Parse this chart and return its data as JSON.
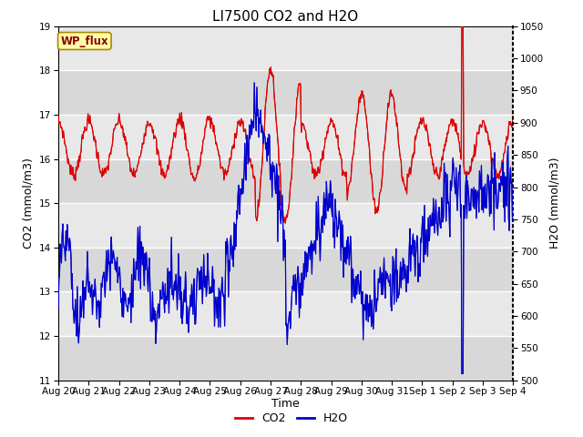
{
  "title": "LI7500 CO2 and H2O",
  "xlabel": "Time",
  "ylabel_left": "CO2 (mmol/m3)",
  "ylabel_right": "H2O (mmol/m3)",
  "ylim_left": [
    11.0,
    19.0
  ],
  "ylim_right": [
    500,
    1050
  ],
  "yticks_left": [
    11.0,
    12.0,
    13.0,
    14.0,
    15.0,
    16.0,
    17.0,
    18.0,
    19.0
  ],
  "yticks_right": [
    500,
    550,
    600,
    650,
    700,
    750,
    800,
    850,
    900,
    950,
    1000,
    1050
  ],
  "xtick_labels": [
    "Aug 20",
    "Aug 21",
    "Aug 22",
    "Aug 23",
    "Aug 24",
    "Aug 25",
    "Aug 26",
    "Aug 27",
    "Aug 28",
    "Aug 29",
    "Aug 30",
    "Aug 31",
    "Sep 1",
    "Sep 2",
    "Sep 3",
    "Sep 4"
  ],
  "co2_color": "#dd0000",
  "h2o_color": "#0000cc",
  "background_color": "#e8e8e8",
  "face_color": "#ffffff",
  "wp_flux_label": "WP_flux",
  "wp_flux_bg": "#ffffaa",
  "wp_flux_border": "#aa8800",
  "legend_co2": "CO2",
  "legend_h2o": "H2O",
  "title_fontsize": 11,
  "axis_label_fontsize": 9,
  "tick_fontsize": 7.5,
  "legend_fontsize": 9
}
